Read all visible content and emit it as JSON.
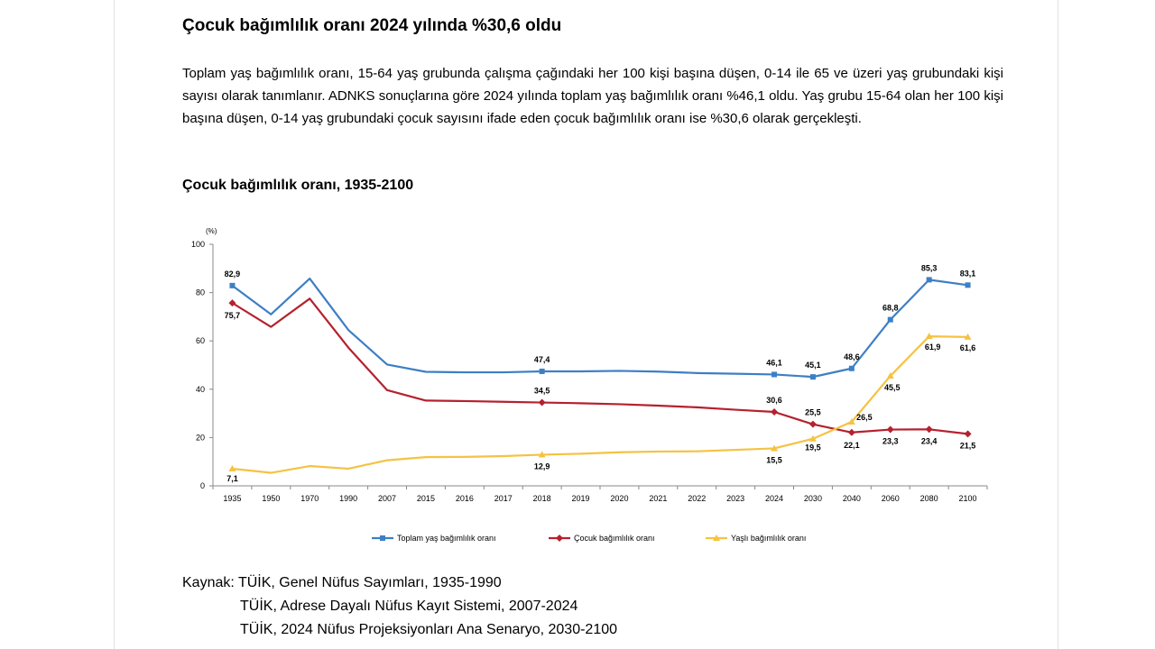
{
  "heading": "Çocuk bağımlılık oranı 2024 yılında %30,6 oldu",
  "paragraph": "Toplam yaş bağımlılık oranı, 15-64 yaş grubunda çalışma çağındaki her 100 kişi başına düşen, 0-14 ile 65 ve üzeri yaş grubundaki kişi sayısı olarak tanımlanır. ADNKS sonuçlarına göre 2024 yılında toplam yaş bağımlılık oranı %46,1 oldu. Yaş grubu 15-64 olan her 100 kişi başına düşen, 0-14 yaş grubundaki çocuk sayısını ifade eden çocuk bağımlılık oranı ise %30,6 olarak gerçekleşti.",
  "chart_title": "Çocuk bağımlılık oranı, 1935-2100",
  "chart_data": {
    "type": "line",
    "unit_label": "(%)",
    "ylim": [
      0,
      100
    ],
    "yticks": [
      0,
      20,
      40,
      60,
      80,
      100
    ],
    "grid": false,
    "legend_position": "bottom",
    "categories": [
      "1935",
      "1950",
      "1970",
      "1990",
      "2007",
      "2015",
      "2016",
      "2017",
      "2018",
      "2019",
      "2020",
      "2021",
      "2022",
      "2023",
      "2024",
      "2030",
      "2040",
      "2060",
      "2080",
      "2100"
    ],
    "series": [
      {
        "name": "Toplam yaş bağımlılık oranı",
        "color": "#3d7fc5",
        "marker": "square",
        "values": [
          82.9,
          71.0,
          85.8,
          64.5,
          50.2,
          47.2,
          47.0,
          47.0,
          47.4,
          47.4,
          47.6,
          47.3,
          46.7,
          46.4,
          46.1,
          45.1,
          48.6,
          68.8,
          85.3,
          83.1
        ],
        "labels": [
          "82,9",
          "",
          "",
          "",
          "",
          "",
          "",
          "",
          "47,4",
          "",
          "",
          "",
          "",
          "",
          "46,1",
          "45,1",
          "48,6",
          "68,8",
          "85,3",
          "83,1"
        ]
      },
      {
        "name": "Çocuk bağımlılık oranı",
        "color": "#b5212e",
        "marker": "diamond",
        "values": [
          75.7,
          65.8,
          77.5,
          57.2,
          39.6,
          35.3,
          35.1,
          34.8,
          34.5,
          34.2,
          33.8,
          33.2,
          32.5,
          31.5,
          30.6,
          25.5,
          22.1,
          23.3,
          23.4,
          21.5
        ],
        "labels": [
          "75,7",
          "",
          "",
          "",
          "",
          "",
          "",
          "",
          "34,5",
          "",
          "",
          "",
          "",
          "",
          "30,6",
          "25,5",
          "22,1",
          "23,3",
          "23,4",
          "21,5"
        ]
      },
      {
        "name": "Yaşlı bağımlılık oranı",
        "color": "#f5c242",
        "marker": "triangle",
        "values": [
          7.1,
          5.4,
          8.2,
          7.1,
          10.6,
          11.9,
          12.0,
          12.3,
          12.9,
          13.3,
          13.9,
          14.2,
          14.3,
          14.9,
          15.5,
          19.5,
          26.5,
          45.5,
          61.9,
          61.6
        ],
        "labels": [
          "7,1",
          "",
          "",
          "",
          "",
          "",
          "",
          "",
          "12,9",
          "",
          "",
          "",
          "",
          "",
          "15,5",
          "19,5",
          "26,5",
          "45,5",
          "61,9",
          "61,6"
        ]
      }
    ]
  },
  "source": {
    "label": "Kaynak:",
    "lines": [
      "TÜİK, Genel Nüfus Sayımları, 1935-1990",
      "TÜİK, Adrese Dayalı Nüfus Kayıt Sistemi, 2007-2024",
      "TÜİK, 2024 Nüfus Projeksiyonları Ana Senaryo, 2030-2100"
    ]
  }
}
